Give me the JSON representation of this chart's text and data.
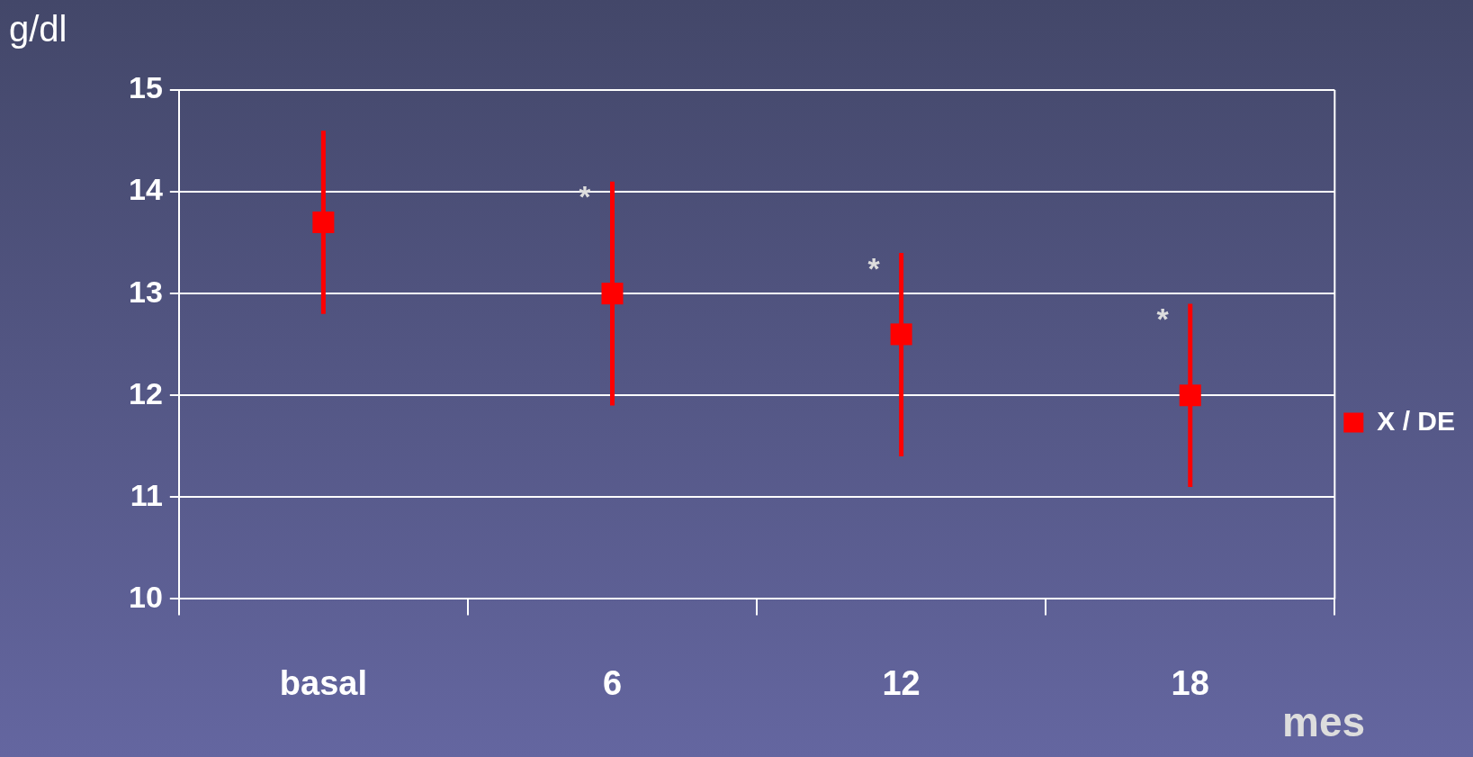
{
  "chart_data": {
    "type": "scatter",
    "xlabel": "mes",
    "ylabel": "g/dl",
    "categories": [
      "basal",
      "6",
      "12",
      "18"
    ],
    "series": [
      {
        "name": "X / DE",
        "color": "#ff0000",
        "values": [
          13.7,
          13.0,
          12.6,
          12.0
        ],
        "errors": [
          [
            12.8,
            14.6
          ],
          [
            11.9,
            14.1
          ],
          [
            11.4,
            13.4
          ],
          [
            11.1,
            12.9
          ]
        ]
      }
    ],
    "ylim": [
      10,
      15
    ],
    "yticks": [
      10,
      11,
      12,
      13,
      14,
      15
    ],
    "grid": "y",
    "legend": "right",
    "marker": "square",
    "annotations": [
      {
        "text": "*",
        "x": "6",
        "y": 14.0
      },
      {
        "text": "*",
        "x": "12",
        "y": 13.3
      },
      {
        "text": "*",
        "x": "18",
        "y": 12.8
      }
    ]
  }
}
